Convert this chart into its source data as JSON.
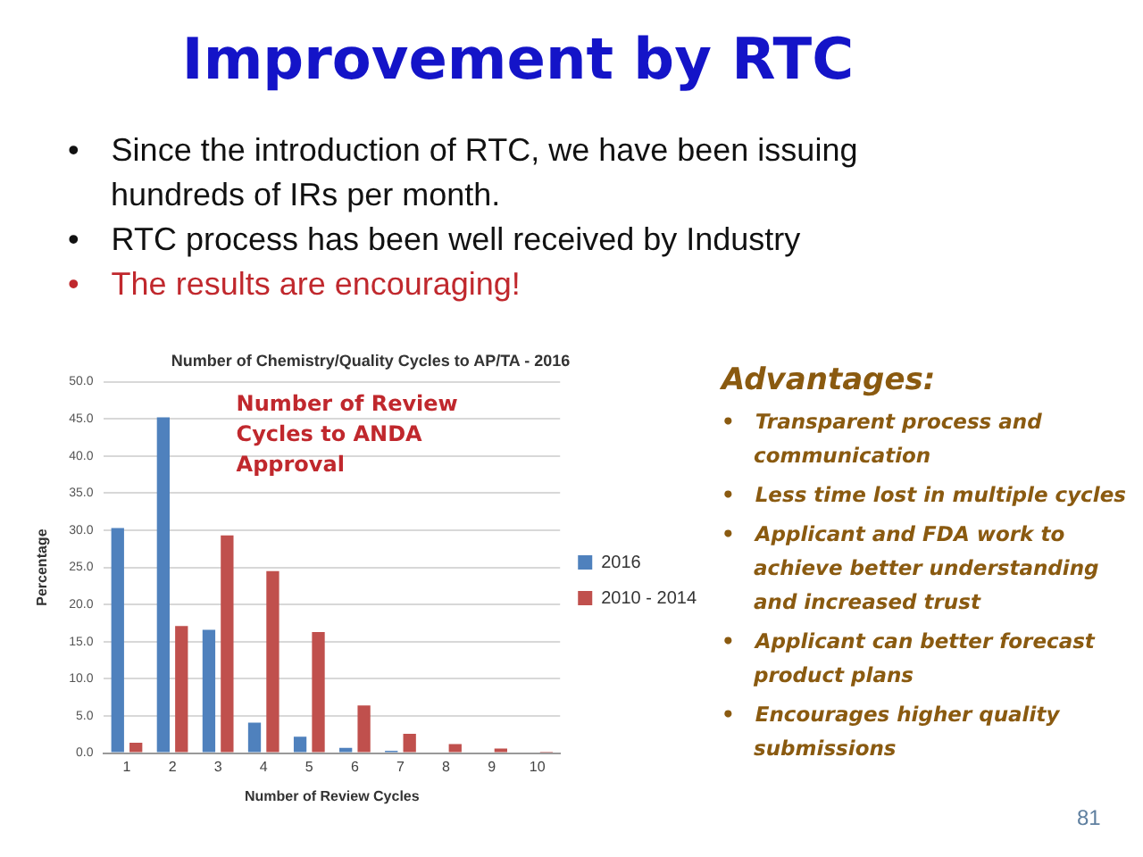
{
  "chart_data": {
    "type": "bar",
    "title": "Improvement by RTC",
    "subtitle": "Number of Chemistry/Quality Cycles to AP/TA - 2016",
    "xlabel": "Number of Review Cycles",
    "ylabel": "Percentage",
    "categories": [
      "1",
      "2",
      "3",
      "4",
      "5",
      "6",
      "7",
      "8",
      "9",
      "10"
    ],
    "series": [
      {
        "name": "2016",
        "color": "#4f81bd",
        "values": [
          30.3,
          45.2,
          16.6,
          4.1,
          2.2,
          0.7,
          0.3,
          0,
          0,
          0
        ]
      },
      {
        "name": "2010 - 2014",
        "color": "#c0504d",
        "values": [
          1.4,
          17.1,
          29.3,
          24.5,
          16.3,
          6.4,
          2.6,
          1.2,
          0.6,
          0.2
        ]
      }
    ],
    "ylim": [
      0,
      50
    ],
    "yticks": [
      {
        "value": 0,
        "label": "0.0"
      },
      {
        "value": 5,
        "label": "5.0"
      },
      {
        "value": 10,
        "label": "10.0"
      },
      {
        "value": 15,
        "label": "15.0"
      },
      {
        "value": 20,
        "label": "20.0"
      },
      {
        "value": 25,
        "label": "25.0"
      },
      {
        "value": 30,
        "label": "30.0"
      },
      {
        "value": 35,
        "label": "35.0"
      },
      {
        "value": 40,
        "label": "40.0"
      },
      {
        "value": 45,
        "label": "45.0"
      },
      {
        "value": 50,
        "label": "50.0"
      }
    ],
    "grid": "y",
    "legend": "right",
    "annotations": [
      "• Since the introduction of RTC, we have been issuing hundreds of IRs per month.",
      "• RTC process has been well received by Industry",
      "• The results are encouraging!",
      "Number of Review Cycles to ANDA Approval",
      "Advantages:",
      "• Transparent process and communication",
      "• Less time lost in multiple cycles",
      "• Applicant and FDA work to achieve better understanding and increased trust",
      "• Applicant can better forecast product plans",
      "• Encourages higher quality submissions",
      "81"
    ]
  }
}
